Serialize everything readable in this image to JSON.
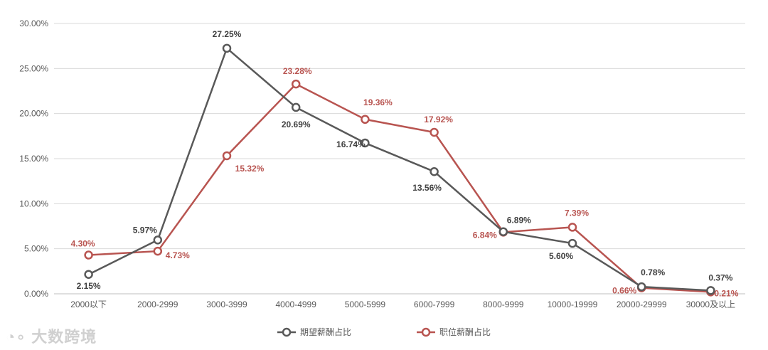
{
  "chart_data": {
    "type": "line",
    "categories": [
      "2000以下",
      "2000-2999",
      "3000-3999",
      "4000-4999",
      "5000-5999",
      "6000-7999",
      "8000-9999",
      "10000-19999",
      "20000-29999",
      "30000及以上"
    ],
    "yticks": [
      "0.00%",
      "5.00%",
      "10.00%",
      "15.00%",
      "20.00%",
      "25.00%",
      "30.00%"
    ],
    "ylim": [
      0,
      30
    ],
    "grid": true,
    "legend_position": "bottom",
    "series": [
      {
        "name": "期望薪酬占比",
        "color": "#595959",
        "values": [
          2.15,
          5.97,
          27.25,
          20.69,
          16.74,
          13.56,
          6.89,
          5.6,
          0.78,
          0.37
        ],
        "labels": [
          "2.15%",
          "5.97%",
          "27.25%",
          "20.69%",
          "16.74%",
          "13.56%",
          "6.89%",
          "5.60%",
          "0.78%",
          "0.37%"
        ]
      },
      {
        "name": "职位薪酬占比",
        "color": "#b85450",
        "values": [
          4.3,
          4.73,
          15.32,
          23.28,
          19.36,
          17.92,
          6.84,
          7.39,
          0.66,
          0.21
        ],
        "labels": [
          "4.30%",
          "4.73%",
          "15.32%",
          "23.28%",
          "19.36%",
          "17.92%",
          "6.84%",
          "7.39%",
          "0.66%",
          "0.21%"
        ]
      }
    ]
  },
  "watermark": "大数跨境",
  "colors": {
    "grid": "#d9d9d9",
    "axis": "#bfbfbf"
  }
}
